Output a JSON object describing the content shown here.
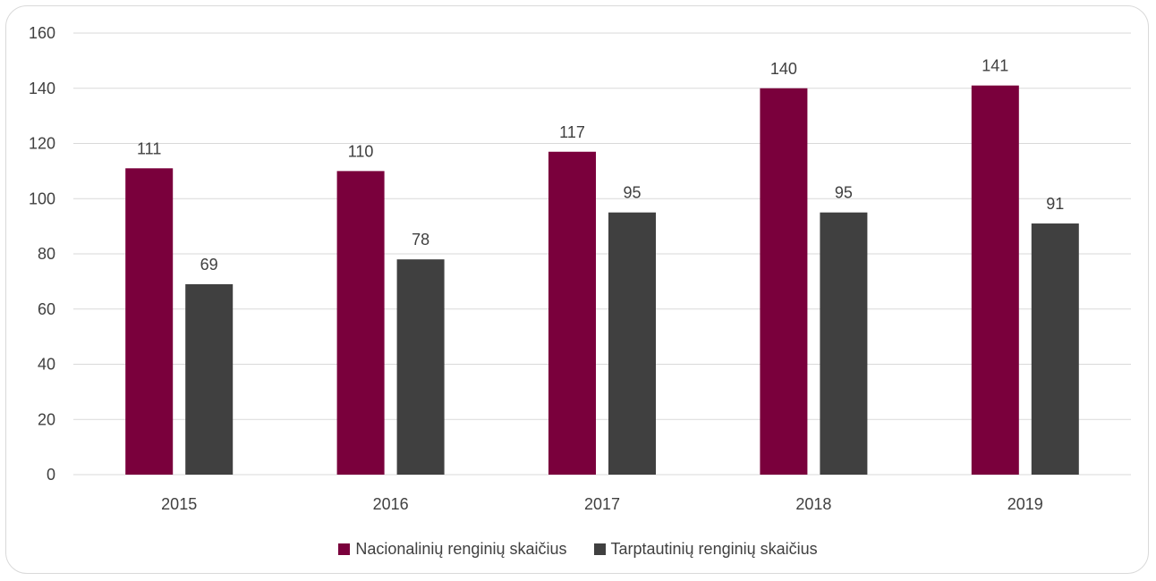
{
  "chart_data": {
    "type": "bar",
    "title": "",
    "xlabel": "",
    "ylabel": "",
    "categories": [
      "2015",
      "2016",
      "2017",
      "2018",
      "2019"
    ],
    "ylim": [
      0,
      160
    ],
    "yticks": [
      0,
      20,
      40,
      60,
      80,
      100,
      120,
      140,
      160
    ],
    "grid": true,
    "legend_position": "bottom",
    "series": [
      {
        "name": "Nacionalinių renginių skaičius",
        "color": "#7a003c",
        "values": [
          111,
          110,
          117,
          140,
          141
        ]
      },
      {
        "name": "Tarptautinių renginių skaičius",
        "color": "#404040",
        "values": [
          69,
          78,
          95,
          95,
          91
        ]
      }
    ]
  }
}
